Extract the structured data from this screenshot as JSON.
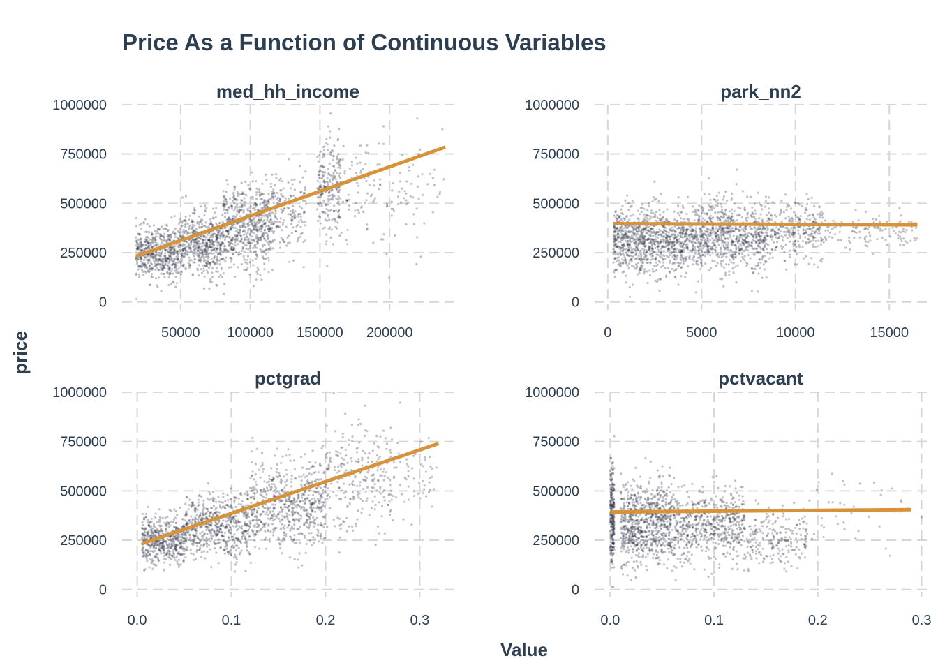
{
  "colors": {
    "points": "#1c2036",
    "fit_line": "#d7923a",
    "text": "#2c3e50",
    "grid": "#d6d6d6"
  },
  "chart_data": {
    "type": "scatter",
    "title": "Price As a Function of Continuous Variables",
    "xlabel": "Value",
    "ylabel": "price",
    "grid": true,
    "y_ticks": [
      0,
      250000,
      500000,
      750000,
      1000000
    ],
    "panels": [
      {
        "name": "med_hh_income",
        "xlim": [
          8000,
          246000
        ],
        "ylim": [
          -40000,
          1000000
        ],
        "x_ticks": [
          50000,
          100000,
          150000,
          200000
        ],
        "x_tick_labels": [
          "50000",
          "100000",
          "150000",
          "200000"
        ],
        "fit_line": [
          [
            18000,
            232000
          ],
          [
            240000,
            785000
          ]
        ],
        "point_clusters": [
          {
            "x_range": [
              18000,
              48000
            ],
            "y_center": 245000,
            "y_spread": 110000,
            "n": 520
          },
          {
            "x_range": [
              48000,
              80000
            ],
            "y_center": 290000,
            "y_spread": 130000,
            "n": 560
          },
          {
            "x_range": [
              80000,
              115000
            ],
            "y_center": 380000,
            "y_spread": 170000,
            "n": 620
          },
          {
            "x_range": [
              115000,
              140000
            ],
            "y_center": 440000,
            "y_spread": 190000,
            "n": 180
          },
          {
            "x_range": [
              148000,
              165000
            ],
            "y_center": 560000,
            "y_spread": 210000,
            "n": 240
          },
          {
            "x_range": [
              165000,
              215000
            ],
            "y_center": 560000,
            "y_spread": 220000,
            "n": 110
          },
          {
            "x_range": [
              215000,
              240000
            ],
            "y_center": 600000,
            "y_spread": 260000,
            "n": 30
          }
        ]
      },
      {
        "name": "park_nn2",
        "xlim": [
          -700,
          17000
        ],
        "ylim": [
          -40000,
          1000000
        ],
        "x_ticks": [
          0,
          5000,
          10000,
          15000
        ],
        "x_tick_labels": [
          "0",
          "5000",
          "10000",
          "15000"
        ],
        "fit_line": [
          [
            300,
            397000
          ],
          [
            16500,
            391000
          ]
        ],
        "point_clusters": [
          {
            "x_range": [
              300,
              4000
            ],
            "y_center": 310000,
            "y_spread": 140000,
            "n": 900
          },
          {
            "x_range": [
              4000,
              8500
            ],
            "y_center": 330000,
            "y_spread": 150000,
            "n": 900
          },
          {
            "x_range": [
              8500,
              11500
            ],
            "y_center": 360000,
            "y_spread": 120000,
            "n": 300
          },
          {
            "x_range": [
              11500,
              16500
            ],
            "y_center": 360000,
            "y_spread": 70000,
            "n": 120
          }
        ]
      },
      {
        "name": "pctgrad",
        "xlim": [
          -0.016,
          0.336
        ],
        "ylim": [
          -40000,
          1000000
        ],
        "x_ticks": [
          0.0,
          0.1,
          0.2,
          0.3
        ],
        "x_tick_labels": [
          "0.0",
          "0.1",
          "0.2",
          "0.3"
        ],
        "fit_line": [
          [
            0.005,
            233000
          ],
          [
            0.32,
            740000
          ]
        ],
        "point_clusters": [
          {
            "x_range": [
              0.005,
              0.05
            ],
            "y_center": 250000,
            "y_spread": 100000,
            "n": 500
          },
          {
            "x_range": [
              0.05,
              0.12
            ],
            "y_center": 320000,
            "y_spread": 130000,
            "n": 600
          },
          {
            "x_range": [
              0.12,
              0.2
            ],
            "y_center": 430000,
            "y_spread": 190000,
            "n": 650
          },
          {
            "x_range": [
              0.2,
              0.27
            ],
            "y_center": 560000,
            "y_spread": 220000,
            "n": 260
          },
          {
            "x_range": [
              0.27,
              0.32
            ],
            "y_center": 560000,
            "y_spread": 180000,
            "n": 60
          }
        ]
      },
      {
        "name": "pctvacant",
        "xlim": [
          -0.015,
          0.305
        ],
        "ylim": [
          -40000,
          1000000
        ],
        "x_ticks": [
          0.0,
          0.1,
          0.2,
          0.3
        ],
        "x_tick_labels": [
          "0.0",
          "0.1",
          "0.2",
          "0.3"
        ],
        "fit_line": [
          [
            0.0,
            393000
          ],
          [
            0.29,
            405000
          ]
        ],
        "point_clusters": [
          {
            "x_range": [
              0.0,
              0.004
            ],
            "y_center": 380000,
            "y_spread": 200000,
            "n": 260
          },
          {
            "x_range": [
              0.01,
              0.06
            ],
            "y_center": 340000,
            "y_spread": 170000,
            "n": 800
          },
          {
            "x_range": [
              0.06,
              0.13
            ],
            "y_center": 320000,
            "y_spread": 150000,
            "n": 600
          },
          {
            "x_range": [
              0.13,
              0.19
            ],
            "y_center": 260000,
            "y_spread": 120000,
            "n": 220
          },
          {
            "x_range": [
              0.19,
              0.3
            ],
            "y_center": 400000,
            "y_spread": 180000,
            "n": 40
          }
        ]
      }
    ]
  }
}
